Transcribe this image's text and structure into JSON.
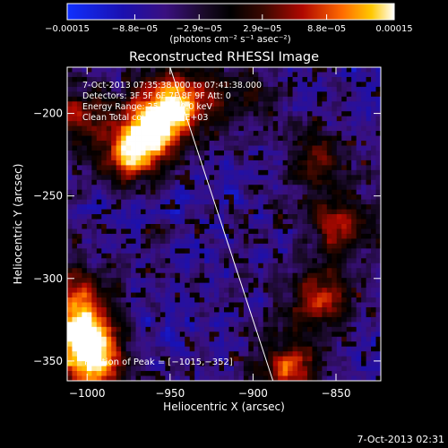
{
  "chart_data": {
    "type": "heatmap",
    "title": "Reconstructed RHESSI Image",
    "xlabel": "Heliocentric X (arcsec)",
    "ylabel": "Heliocentric Y (arcsec)",
    "xlim": [
      -1012,
      -823
    ],
    "ylim": [
      -362,
      -172
    ],
    "xticks": [
      -1000,
      -950,
      -900,
      -850
    ],
    "xtick_labels": [
      "−1000",
      "−950",
      "−900",
      "−850"
    ],
    "yticks": [
      -200,
      -250,
      -300,
      -350
    ],
    "ytick_labels": [
      "−200",
      "−250",
      "−300",
      "−350"
    ],
    "colorbar": {
      "min": -0.00015,
      "max": 0.00015,
      "ticks": [
        -0.00015,
        -8.8e-05,
        -2.9e-05,
        2.9e-05,
        8.8e-05,
        0.00015
      ],
      "tick_labels": [
        "−0.00015",
        "−8.8e−05",
        "−2.9e−05",
        "2.9e−05",
        "8.8e−05",
        "0.00015"
      ],
      "unit_label": "(photons cm⁻² s⁻¹ asec⁻²)"
    },
    "annotations": [
      "7-Oct-2013 07:35:38.000 to 07:41:38.000",
      "Detectors: 3F 5F 6F 7F 8F 9F  Att: 0",
      "Energy Range: 25.0 - 50.0 keV",
      "Clean     Total counts: 9.08E+03"
    ],
    "peak_label": "Position of Peak = [−1015,−352]",
    "peak": [
      -1015,
      -352
    ],
    "bright_sources": [
      {
        "x": -945,
        "y": -190,
        "amp": 1.0
      },
      {
        "x": -960,
        "y": -208,
        "amp": 0.95
      },
      {
        "x": -975,
        "y": -225,
        "amp": 0.9
      },
      {
        "x": -1005,
        "y": -200,
        "amp": 0.65
      },
      {
        "x": -1002,
        "y": -335,
        "amp": 1.0
      },
      {
        "x": -995,
        "y": -355,
        "amp": 0.85
      },
      {
        "x": -1007,
        "y": -310,
        "amp": 0.7
      },
      {
        "x": -880,
        "y": -355,
        "amp": 0.8
      },
      {
        "x": -862,
        "y": -312,
        "amp": 0.7
      },
      {
        "x": -848,
        "y": -270,
        "amp": 0.65
      },
      {
        "x": -905,
        "y": -190,
        "amp": 0.4
      },
      {
        "x": -860,
        "y": -228,
        "amp": 0.55
      }
    ],
    "limb_line": {
      "x_at_top": -950,
      "x_at_bottom": -888
    },
    "grid": false
  },
  "footer": {
    "timestamp": "7-Oct-2013 02:31"
  }
}
